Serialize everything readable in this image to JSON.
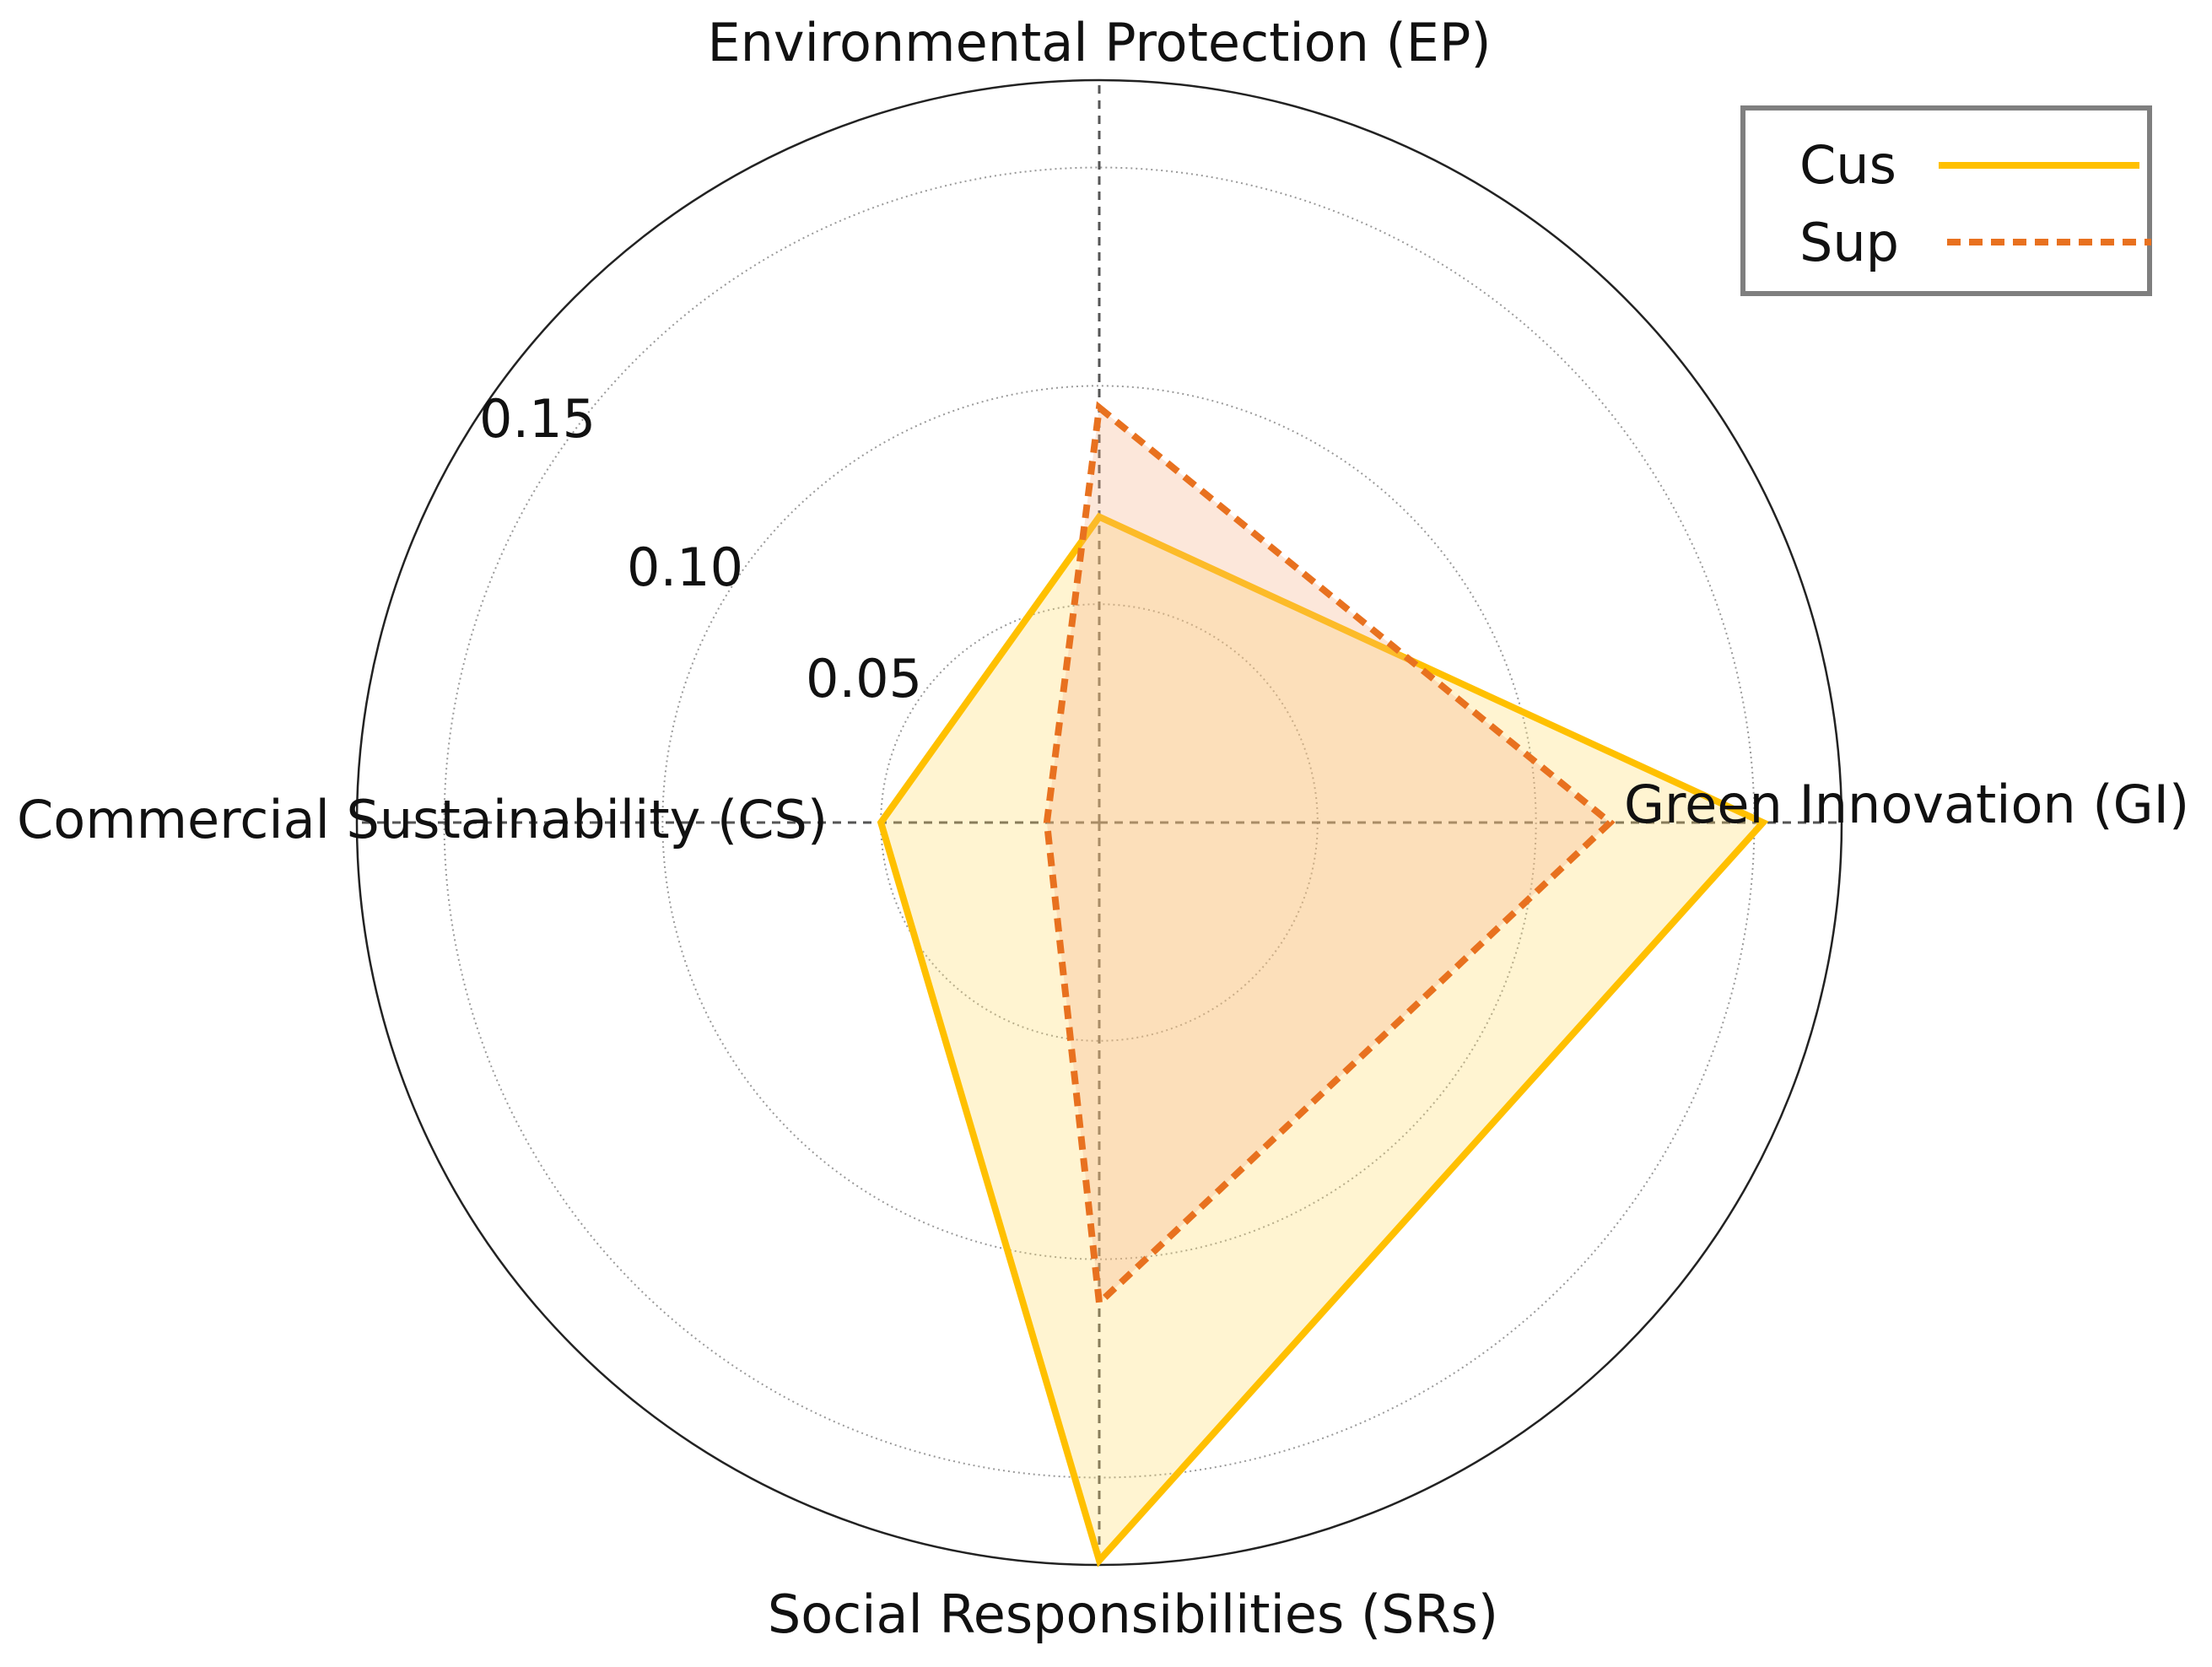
{
  "chart_data": {
    "type": "radar",
    "axes": [
      {
        "key": "EP",
        "label": "Environmental Protection (EP)"
      },
      {
        "key": "GI",
        "label": "Green Innovation (GI)"
      },
      {
        "key": "SRs",
        "label": "Social Responsibilities (SRs)"
      },
      {
        "key": "CS",
        "label": "Commercial Sustainability (CS)"
      }
    ],
    "radial_ticks": [
      {
        "value": 0.05,
        "label": "0.05"
      },
      {
        "value": 0.1,
        "label": "0.10"
      },
      {
        "value": 0.15,
        "label": "0.15"
      }
    ],
    "rlim": [
      0,
      0.17
    ],
    "series": [
      {
        "name": "Cus",
        "values": [
          0.07,
          0.152,
          0.169,
          0.05
        ],
        "color": "#FFC000",
        "fill": "#FFD966",
        "line_style": "solid"
      },
      {
        "name": "Sup",
        "values": [
          0.095,
          0.117,
          0.11,
          0.012
        ],
        "color": "#E8711F",
        "fill": "#F4B183",
        "line_style": "dashed"
      }
    ],
    "legend_position": "top-right",
    "grid": true
  }
}
